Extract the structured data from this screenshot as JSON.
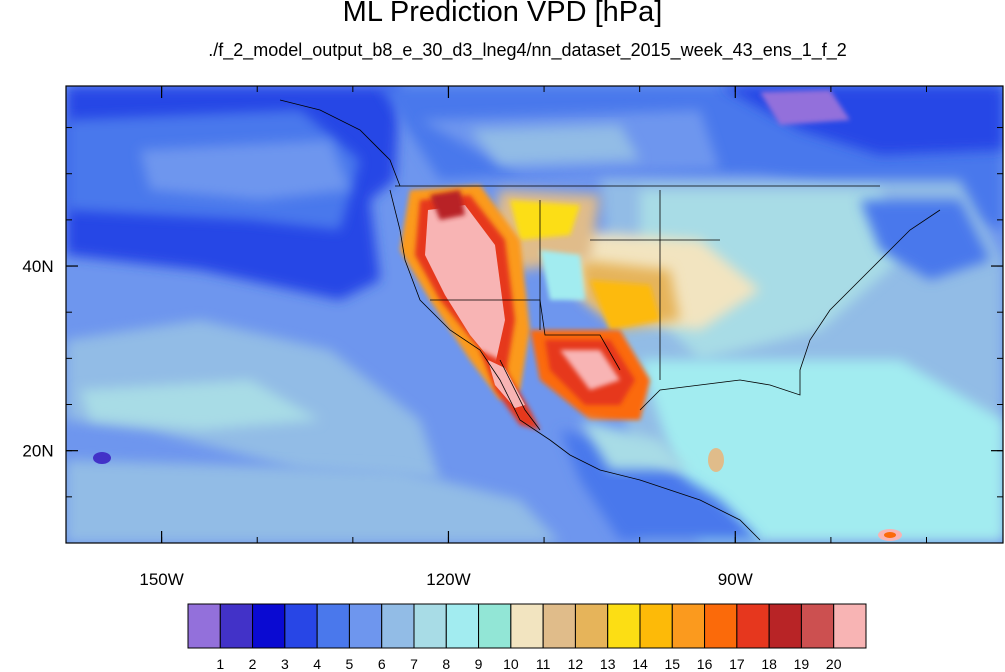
{
  "title": "ML Prediction VPD [hPa]",
  "subtitle": "./f_2_model_output_b8_e_30_d3_lneg4/nn_dataset_2015_week_43_ens_1_f_2",
  "map": {
    "lon_range": [
      -160,
      -62
    ],
    "lat_range": [
      10,
      59.5
    ],
    "lon_ticks": [
      {
        "lon": -150,
        "label": "150W"
      },
      {
        "lon": -120,
        "label": "120W"
      },
      {
        "lon": -90,
        "label": "90W"
      }
    ],
    "lat_ticks": [
      {
        "lat": 40,
        "label": "40N"
      },
      {
        "lat": 20,
        "label": "20N"
      }
    ]
  },
  "colorbar": {
    "colors": [
      "#9370db",
      "#4232c8",
      "#0a0ad2",
      "#2846e6",
      "#4a78ec",
      "#6e96ee",
      "#92bce6",
      "#a8dce6",
      "#a2ecf0",
      "#92e6d6",
      "#f2e4c0",
      "#e0bc8a",
      "#e6b45a",
      "#fcde14",
      "#fdba08",
      "#fb9a1e",
      "#fb6a0a",
      "#e6371e",
      "#b82426",
      "#cc5050",
      "#f8b4b4"
    ],
    "labels": [
      "1",
      "2",
      "3",
      "4",
      "5",
      "6",
      "7",
      "8",
      "9",
      "10",
      "11",
      "12",
      "13",
      "14",
      "15",
      "16",
      "17",
      "18",
      "19",
      "20"
    ]
  }
}
